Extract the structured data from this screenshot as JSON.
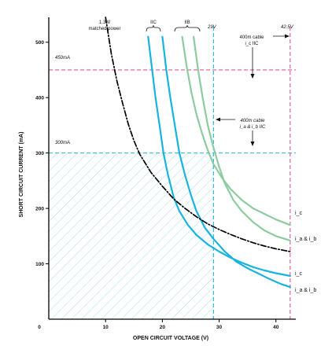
{
  "chart_data": {
    "type": "line",
    "xlabel": "OPEN CIRCUIT VOLTAGE (V)",
    "ylabel": "SHORT CIRCUIT CURRENT (mA)",
    "xlim": [
      0,
      43.5
    ],
    "ylim": [
      0,
      545
    ],
    "x_ticks": [
      {
        "value": 0,
        "label": "0"
      },
      {
        "value": 10,
        "label": "10"
      },
      {
        "value": 20,
        "label": "20"
      },
      {
        "value": 30,
        "label": "30"
      },
      {
        "value": 40,
        "label": "40"
      }
    ],
    "y_ticks": [
      {
        "value": 100,
        "label": "100"
      },
      {
        "value": 200,
        "label": "200"
      },
      {
        "value": 300,
        "label": "300"
      },
      {
        "value": 400,
        "label": "400"
      },
      {
        "value": 500,
        "label": "500"
      }
    ],
    "grid": false,
    "colors": {
      "blue": "#19b4de",
      "green": "#8ccca0",
      "pink": "#e0559c",
      "black": "#000000",
      "hatch": "#a8dcee"
    },
    "series": [
      {
        "style": "blue-solid",
        "end_label": "i_c",
        "x": [
          17.5,
          18.2,
          18.8,
          19.5,
          20.2,
          21,
          22,
          23,
          24.5,
          26,
          28,
          30,
          32,
          34,
          36,
          38,
          40,
          42.5
        ],
        "y": [
          510,
          450,
          400,
          350,
          300,
          260,
          220,
          195,
          170,
          152,
          135,
          122,
          111,
          102,
          94,
          88,
          83,
          78
        ]
      },
      {
        "style": "blue-solid",
        "end_label": "i_a & i_b",
        "x": [
          20,
          20.7,
          21.4,
          22.2,
          23,
          24,
          25,
          26,
          27.5,
          29,
          31,
          33,
          35,
          37,
          39,
          41,
          42.5
        ],
        "y": [
          510,
          450,
          400,
          350,
          300,
          260,
          225,
          195,
          165,
          145,
          122,
          104,
          92,
          82,
          72,
          63,
          58
        ]
      },
      {
        "style": "green-solid",
        "end_label": "i_c",
        "x": [
          23.5,
          24.3,
          25.1,
          26,
          27,
          28,
          29,
          30.5,
          32,
          34,
          36,
          38,
          40,
          42.5
        ],
        "y": [
          510,
          455,
          410,
          370,
          335,
          305,
          280,
          255,
          235,
          215,
          200,
          190,
          180,
          170
        ]
      },
      {
        "style": "green-solid",
        "end_label": "i_a & i_b",
        "x": [
          25.5,
          26.3,
          27.1,
          28,
          29,
          30,
          31,
          32.5,
          34,
          36,
          38,
          40,
          42.5
        ],
        "y": [
          510,
          450,
          400,
          350,
          310,
          275,
          245,
          215,
          195,
          175,
          160,
          150,
          142
        ]
      },
      {
        "style": "black-dashdot",
        "end_label": "",
        "x": [
          10,
          11,
          12,
          13,
          14,
          15,
          16,
          18,
          20,
          22,
          24,
          26,
          28,
          30,
          32,
          34,
          36,
          38,
          40,
          42.5
        ],
        "y": [
          545,
          480,
          430,
          390,
          352,
          322,
          298,
          265,
          240,
          217,
          200,
          185,
          172,
          162,
          153,
          145,
          138,
          132,
          127,
          122
        ]
      }
    ],
    "reference_lines": [
      {
        "orientation": "horizontal",
        "value": 450,
        "color": "pink",
        "label": "450mA"
      },
      {
        "orientation": "horizontal",
        "value": 300,
        "color": "blue",
        "label": "300mA"
      },
      {
        "orientation": "vertical",
        "value": 29,
        "color": "blue",
        "label": "29V"
      },
      {
        "orientation": "vertical",
        "value": 42.5,
        "color": "pink",
        "label": "42.5V"
      }
    ],
    "shaded_region": {
      "x": [
        0,
        29
      ],
      "y": [
        0,
        300
      ]
    },
    "annotations": {
      "matched_power_line1": "1.3W",
      "matched_power_line2": "matched power",
      "group_iic": "IIC",
      "group_iib": "IIB",
      "cable_iic_line1": "400m cable",
      "cable_iic_line2": "i_c IIC",
      "cable_iab_line1": "400m cable",
      "cable_iab_line2": "i_a & i_b IIC"
    }
  }
}
